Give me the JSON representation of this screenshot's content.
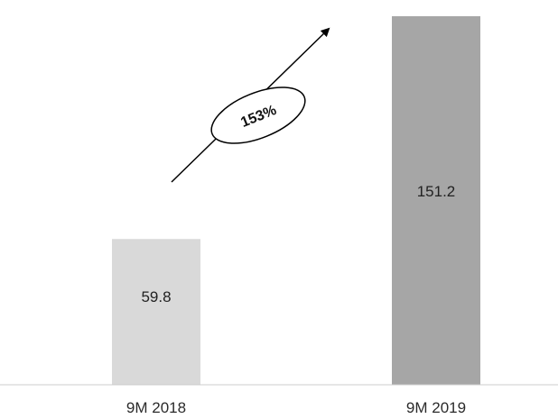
{
  "chart_data": {
    "type": "bar",
    "categories": [
      "9M 2018",
      "9M 2019"
    ],
    "values": [
      59.8,
      151.2
    ],
    "value_labels": [
      "59.8",
      "151.2"
    ],
    "bar_colors": [
      "#d9d9d9",
      "#a6a6a6"
    ],
    "ylim": [
      0,
      160
    ],
    "grid": false,
    "annotation": {
      "text": "153%",
      "shape": "ellipse",
      "arrow": "up-right"
    },
    "title": "",
    "xlabel": "",
    "ylabel": ""
  }
}
